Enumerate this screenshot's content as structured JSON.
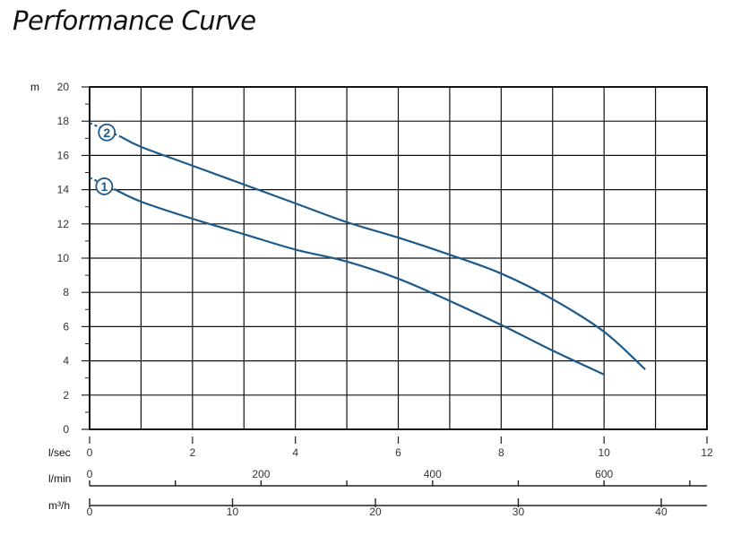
{
  "chart_data": {
    "type": "line",
    "title": "Performance Curve",
    "y_axis": {
      "label": "m",
      "range": [
        0,
        20
      ],
      "ticks": [
        "0",
        "2",
        "4",
        "6",
        "8",
        "10",
        "12",
        "14",
        "16",
        "18",
        "20"
      ]
    },
    "flow_axes": [
      {
        "label": "l/sec",
        "range": [
          0,
          12
        ],
        "tick_values": [
          0,
          2,
          4,
          6,
          8,
          10,
          12
        ],
        "tick_labels": [
          "0",
          "2",
          "4",
          "6",
          "8",
          "10",
          "12"
        ],
        "minor_tick_values": []
      },
      {
        "label": "l/min",
        "range": [
          0,
          720
        ],
        "tick_values": [
          0,
          200,
          400,
          600
        ],
        "tick_labels": [
          "0",
          "200",
          "400",
          "600"
        ],
        "minor_tick_values": [
          100,
          300,
          500,
          700
        ]
      },
      {
        "label": "m³/h",
        "range": [
          0,
          43.2
        ],
        "tick_values": [
          0,
          10,
          20,
          30,
          40
        ],
        "tick_labels": [
          "0",
          "10",
          "20",
          "30",
          "40"
        ],
        "minor_tick_values": []
      }
    ],
    "grid": true,
    "colors": {
      "curve": "#1d5a8a",
      "grid": "#111111"
    },
    "series": [
      {
        "marker": "1",
        "extrapolated": [
          [
            0,
            14.7
          ],
          [
            0.5,
            14.0
          ]
        ],
        "x": [
          0.5,
          1,
          2,
          3,
          4,
          5,
          6,
          7,
          8,
          9,
          10
        ],
        "y": [
          14.0,
          13.3,
          12.3,
          11.4,
          10.5,
          9.8,
          8.8,
          7.5,
          6.1,
          4.6,
          3.2
        ]
      },
      {
        "marker": "2",
        "extrapolated": [
          [
            0,
            17.9
          ],
          [
            0.6,
            17.1
          ]
        ],
        "x": [
          0.6,
          1,
          2,
          3,
          4,
          5,
          6,
          7,
          8,
          9,
          10,
          10.8
        ],
        "y": [
          17.1,
          16.5,
          15.4,
          14.3,
          13.2,
          12.1,
          11.2,
          10.2,
          9.1,
          7.6,
          5.7,
          3.5
        ]
      }
    ]
  }
}
